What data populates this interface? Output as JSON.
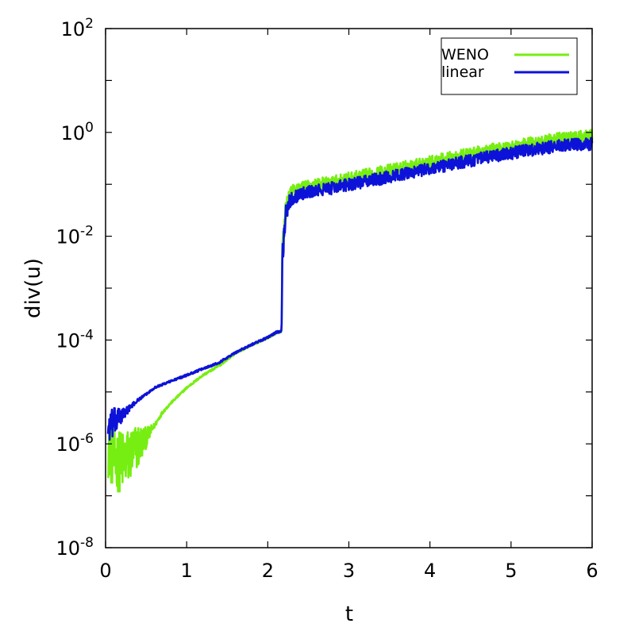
{
  "chart_data": {
    "type": "line",
    "xlabel": "t",
    "ylabel": "div(u)",
    "xlim": [
      0,
      6
    ],
    "ylim": [
      1e-08,
      100
    ],
    "yscale": "log",
    "xticks": [
      0,
      1,
      2,
      3,
      4,
      5,
      6
    ],
    "x_tick_labels": [
      "0",
      "1",
      "2",
      "3",
      "4",
      "5",
      "6"
    ],
    "y_tick_labels": [
      {
        "base": "10",
        "exp": "-8"
      },
      {
        "base": "10",
        "exp": "-6"
      },
      {
        "base": "10",
        "exp": "-4"
      },
      {
        "base": "10",
        "exp": "-2"
      },
      {
        "base": "10",
        "exp": "0"
      },
      {
        "base": "10",
        "exp": "2"
      }
    ],
    "grid": false,
    "legend_position": "top-right",
    "series": [
      {
        "name": "WENO",
        "color": "#77ee11",
        "x": [
          0.03,
          0.1,
          0.2,
          0.3,
          0.4,
          0.5,
          0.6,
          0.7,
          0.8,
          1.0,
          1.2,
          1.4,
          1.6,
          1.8,
          2.0,
          2.1,
          2.17,
          2.18,
          2.2,
          2.22,
          2.25,
          2.3,
          2.4,
          2.6,
          2.8,
          3.0,
          3.3,
          3.6,
          4.0,
          4.4,
          4.8,
          5.2,
          5.6,
          6.0
        ],
        "y": [
          8e-07,
          5e-07,
          4.5e-07,
          6e-07,
          9e-07,
          1.3e-06,
          2.2e-06,
          4e-06,
          6e-06,
          1.2e-05,
          2.1e-05,
          3.2e-05,
          5.6e-05,
          8e-05,
          0.00011,
          0.000135,
          0.000145,
          0.005,
          0.012,
          0.03,
          0.05,
          0.07,
          0.085,
          0.1,
          0.11,
          0.13,
          0.16,
          0.2,
          0.27,
          0.36,
          0.47,
          0.6,
          0.75,
          0.85
        ],
        "noise": [
          0.55,
          0.6,
          0.6,
          0.55,
          0.45,
          0.2,
          0.05,
          0.03,
          0.02,
          0.02,
          0.02,
          0.02,
          0.02,
          0.02,
          0.02,
          0.02,
          0.02,
          0.25,
          0.2,
          0.18,
          0.16,
          0.14,
          0.12,
          0.12,
          0.12,
          0.12,
          0.12,
          0.12,
          0.12,
          0.12,
          0.12,
          0.12,
          0.12,
          0.12
        ]
      },
      {
        "name": "linear",
        "color": "#0d12d8",
        "x": [
          0.03,
          0.1,
          0.2,
          0.3,
          0.4,
          0.5,
          0.6,
          0.8,
          1.0,
          1.2,
          1.4,
          1.6,
          1.8,
          2.0,
          2.1,
          2.17,
          2.18,
          2.2,
          2.22,
          2.25,
          2.3,
          2.4,
          2.6,
          2.8,
          3.0,
          3.3,
          3.6,
          4.0,
          4.4,
          4.8,
          5.2,
          5.6,
          6.0
        ],
        "y": [
          2e-06,
          2.5e-06,
          3.5e-06,
          5e-06,
          7e-06,
          9e-06,
          1.2e-05,
          1.6e-05,
          2.1e-05,
          2.8e-05,
          3.7e-05,
          5.7e-05,
          8.2e-05,
          0.000112,
          0.00014,
          0.00015,
          0.004,
          0.01,
          0.025,
          0.04,
          0.055,
          0.065,
          0.075,
          0.085,
          0.1,
          0.12,
          0.15,
          0.2,
          0.27,
          0.35,
          0.45,
          0.55,
          0.6
        ],
        "noise": [
          0.3,
          0.3,
          0.15,
          0.05,
          0.03,
          0.02,
          0.02,
          0.02,
          0.02,
          0.02,
          0.02,
          0.02,
          0.02,
          0.02,
          0.02,
          0.02,
          0.25,
          0.2,
          0.18,
          0.16,
          0.14,
          0.12,
          0.12,
          0.12,
          0.12,
          0.12,
          0.12,
          0.12,
          0.12,
          0.12,
          0.12,
          0.12,
          0.12
        ]
      }
    ]
  }
}
